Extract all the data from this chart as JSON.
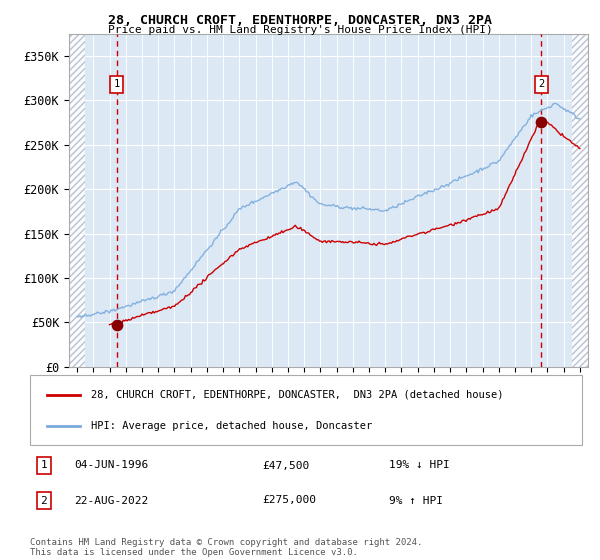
{
  "title1": "28, CHURCH CROFT, EDENTHORPE, DONCASTER, DN3 2PA",
  "title2": "Price paid vs. HM Land Registry's House Price Index (HPI)",
  "legend_line1": "28, CHURCH CROFT, EDENTHORPE, DONCASTER,  DN3 2PA (detached house)",
  "legend_line2": "HPI: Average price, detached house, Doncaster",
  "annotation1_label": "1",
  "annotation1_date": "04-JUN-1996",
  "annotation1_price": "£47,500",
  "annotation1_hpi": "19% ↓ HPI",
  "annotation2_label": "2",
  "annotation2_date": "22-AUG-2022",
  "annotation2_price": "£275,000",
  "annotation2_hpi": "9% ↑ HPI",
  "footnote": "Contains HM Land Registry data © Crown copyright and database right 2024.\nThis data is licensed under the Open Government Licence v3.0.",
  "ylim": [
    0,
    375000
  ],
  "yticks": [
    0,
    50000,
    100000,
    150000,
    200000,
    250000,
    300000,
    350000
  ],
  "ytick_labels": [
    "£0",
    "£50K",
    "£100K",
    "£150K",
    "£200K",
    "£250K",
    "£300K",
    "£350K"
  ],
  "xlim_start": 1993.5,
  "xlim_end": 2025.5,
  "sale1_x": 1996.43,
  "sale1_y": 47500,
  "sale2_x": 2022.63,
  "sale2_y": 275000,
  "hatch_left_end": 1994.5,
  "hatch_right_start": 2024.5,
  "bg_color": "#dce9f5",
  "grid_color": "#ffffff",
  "red_line_color": "#cc0000",
  "blue_line_color": "#7aaadd",
  "dashed_line_color": "#cc0000",
  "sale_dot_color": "#880000",
  "annotation_box_color": "#cc0000"
}
